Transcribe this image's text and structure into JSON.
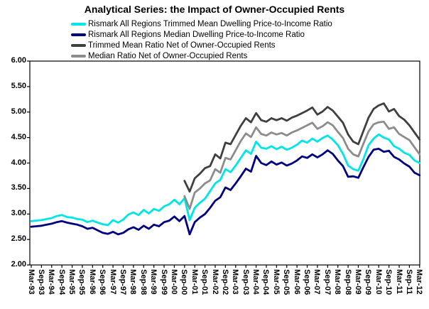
{
  "title": "Analytical Series: the Impact of Owner-Occupied Rents",
  "background_color": "#ffffff",
  "axis_color": "#000000",
  "chart_data": {
    "type": "line",
    "title": "Analytical Series: the Impact of Owner-Occupied Rents",
    "xlabel": "",
    "ylabel": "",
    "ylim": [
      2.0,
      6.0
    ],
    "y_tick_step": 0.5,
    "y_tick_labels": [
      "6.00",
      "5.50",
      "5.00",
      "4.50",
      "4.00",
      "3.50",
      "3.00",
      "2.50",
      "2.00"
    ],
    "grid": false,
    "legend_position": "top-left-below-title",
    "x_frequency": "quarterly (values estimated from chart)",
    "x_tick_labels": [
      "Mar-93",
      "Sep-93",
      "Mar-94",
      "Sep-94",
      "Mar-95",
      "Sep-95",
      "Mar-96",
      "Sep-96",
      "Mar-97",
      "Sep-97",
      "Mar-98",
      "Sep-98",
      "Mar-99",
      "Sep-99",
      "Mar-00",
      "Sep-00",
      "Mar-01",
      "Sep-01",
      "Mar-02",
      "Sep-02",
      "Mar-03",
      "Sep-03",
      "Mar-04",
      "Sep-04",
      "Mar-05",
      "Sep-05",
      "Mar-06",
      "Sep-06",
      "Mar-07",
      "Sep-07",
      "Mar-08",
      "Sep-08",
      "Mar-09",
      "Sep-09",
      "Mar-10",
      "Sep-10",
      "Mar-11",
      "Sep-11",
      "Mar-12"
    ],
    "series": [
      {
        "name": "Rismark All Regions Trimmed Mean Dwelling Price-to-Income Ratio",
        "color": "#00E5E5",
        "start_quarter": "Mar-93",
        "start_index": 0,
        "values": [
          2.86,
          2.87,
          2.88,
          2.9,
          2.92,
          2.96,
          2.98,
          2.94,
          2.93,
          2.9,
          2.89,
          2.84,
          2.87,
          2.83,
          2.8,
          2.78,
          2.88,
          2.83,
          2.89,
          2.99,
          3.03,
          2.98,
          3.08,
          3.01,
          3.1,
          3.06,
          3.15,
          3.19,
          3.28,
          3.19,
          3.31,
          2.88,
          3.12,
          3.22,
          3.3,
          3.45,
          3.6,
          3.67,
          3.88,
          3.82,
          3.95,
          4.1,
          4.25,
          4.18,
          4.42,
          4.3,
          4.28,
          4.33,
          4.27,
          4.32,
          4.26,
          4.3,
          4.36,
          4.44,
          4.4,
          4.48,
          4.42,
          4.49,
          4.54,
          4.46,
          4.35,
          4.18,
          3.95,
          3.88,
          3.85,
          4.08,
          4.35,
          4.48,
          4.56,
          4.5,
          4.46,
          4.33,
          4.28,
          4.2,
          4.16,
          4.05,
          4.0
        ]
      },
      {
        "name": "Rismark All Regions Median Dwelling Price-to-Income Ratio",
        "color": "#00007F",
        "start_quarter": "Mar-93",
        "start_index": 0,
        "values": [
          2.75,
          2.76,
          2.77,
          2.79,
          2.81,
          2.84,
          2.86,
          2.83,
          2.81,
          2.79,
          2.76,
          2.71,
          2.73,
          2.68,
          2.63,
          2.61,
          2.65,
          2.6,
          2.63,
          2.7,
          2.74,
          2.69,
          2.77,
          2.71,
          2.79,
          2.76,
          2.84,
          2.87,
          2.95,
          2.86,
          2.96,
          2.6,
          2.84,
          2.93,
          3.0,
          3.12,
          3.26,
          3.33,
          3.52,
          3.47,
          3.6,
          3.74,
          3.89,
          3.83,
          4.14,
          4.0,
          3.96,
          4.03,
          3.97,
          4.01,
          3.95,
          3.99,
          4.05,
          4.13,
          4.1,
          4.17,
          4.11,
          4.17,
          4.25,
          4.18,
          4.05,
          3.94,
          3.73,
          3.74,
          3.71,
          3.92,
          4.12,
          4.26,
          4.28,
          4.22,
          4.24,
          4.12,
          4.07,
          3.99,
          3.93,
          3.81,
          3.76
        ]
      },
      {
        "name": "Trimmed Mean Ratio Net of Owner-Occupied Rents",
        "color": "#3F3F3F",
        "start_quarter": "Sep-00",
        "start_index": 30,
        "values": [
          3.65,
          3.44,
          3.7,
          3.79,
          3.9,
          3.94,
          4.17,
          4.09,
          4.4,
          4.37,
          4.55,
          4.73,
          4.88,
          4.8,
          4.98,
          4.84,
          4.81,
          4.88,
          4.84,
          4.88,
          4.83,
          4.89,
          4.93,
          4.98,
          5.03,
          5.09,
          4.95,
          5.01,
          5.1,
          5.03,
          4.91,
          4.79,
          4.56,
          4.42,
          4.37,
          4.63,
          4.89,
          5.06,
          5.13,
          5.17,
          5.01,
          5.06,
          4.92,
          4.85,
          4.74,
          4.6,
          4.46
        ]
      },
      {
        "name": "Median Ratio Net of Owner-Occupied Rents",
        "color": "#8C8C8C",
        "start_quarter": "Sep-00",
        "start_index": 30,
        "values": [
          3.35,
          3.1,
          3.42,
          3.5,
          3.6,
          3.66,
          3.88,
          3.81,
          4.1,
          4.07,
          4.25,
          4.43,
          4.58,
          4.51,
          4.7,
          4.57,
          4.54,
          4.6,
          4.56,
          4.59,
          4.54,
          4.6,
          4.64,
          4.69,
          4.74,
          4.79,
          4.67,
          4.72,
          4.8,
          4.74,
          4.61,
          4.49,
          4.28,
          4.17,
          4.13,
          4.38,
          4.62,
          4.76,
          4.8,
          4.81,
          4.67,
          4.7,
          4.57,
          4.51,
          4.45,
          4.31,
          4.17
        ]
      }
    ]
  }
}
